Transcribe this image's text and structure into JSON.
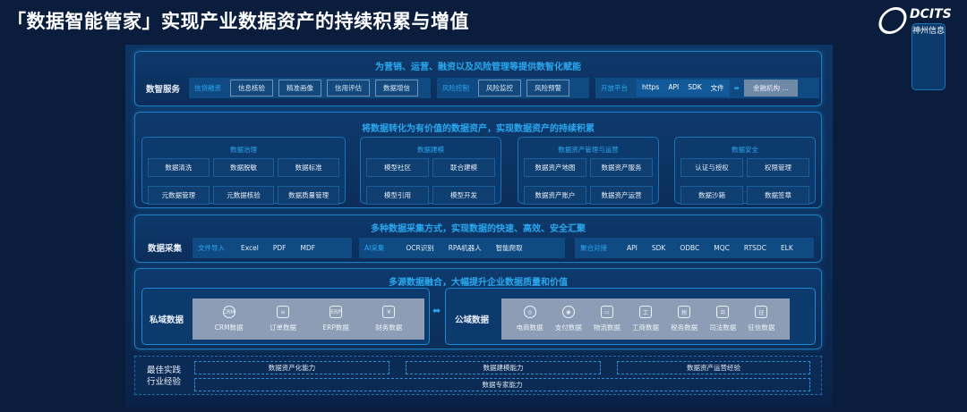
{
  "header": {
    "title": "「数据智能管家」实现产业数据资产的持续积累与增值",
    "logo_brand": "DCITS",
    "logo_sub": "神州信息"
  },
  "services": {
    "title": "为营销、运营、融资以及风险管理等提供数智化赋能",
    "label": "数智服务",
    "groups": [
      {
        "label": "信贷融资",
        "items": [
          "信息核验",
          "精准画像",
          "信用评估",
          "数据增信"
        ]
      },
      {
        "label": "风险控制",
        "items": [
          "风险监控",
          "风险预警"
        ]
      }
    ],
    "open_platform": {
      "label": "开放平台",
      "items": [
        "https",
        "API",
        "SDK",
        "文件"
      ],
      "target": "金融机构 ..."
    }
  },
  "assets": {
    "title": "将数据转化为有价值的数据资产，实现数据资产的持续积累",
    "modules": [
      {
        "title": "数据治理",
        "items": [
          "数据清洗",
          "数据脱敏",
          "数据标准",
          "元数据管理",
          "元数据核验",
          "数据质量管理"
        ]
      },
      {
        "title": "数据建模",
        "items": [
          "模型社区",
          "联合建模",
          "模型引用",
          "模型开发"
        ]
      },
      {
        "title": "数据资产管理与运营",
        "items": [
          "数据资产地图",
          "数据资产服务",
          "数据资产账户",
          "数据资产运营"
        ]
      },
      {
        "title": "数据安全",
        "items": [
          "认证与授权",
          "权限管理",
          "数据沙箱",
          "数据签章"
        ]
      }
    ]
  },
  "collection": {
    "title": "多种数据采集方式，实现数据的快速、高效、安全汇聚",
    "label": "数据采集",
    "groups": [
      {
        "label": "文件导入",
        "items": [
          "Excel",
          "PDF",
          "MDF"
        ]
      },
      {
        "label": "AI采集",
        "items": [
          "OCR识别",
          "RPA机器人",
          "智能爬取"
        ]
      },
      {
        "label": "聚合对接",
        "items": [
          "API",
          "SDK",
          "ODBC",
          "MQC",
          "RTSDC",
          "ELK"
        ]
      }
    ]
  },
  "fusion": {
    "title": "多源数据融合，大幅提升企业数据质量和价值",
    "private": {
      "label": "私域数据",
      "items": [
        {
          "icon": "crm-icon",
          "glyph": "CRM",
          "label": "CRM数据"
        },
        {
          "icon": "order-icon",
          "glyph": "≡",
          "label": "订单数据"
        },
        {
          "icon": "erp-icon",
          "glyph": "ERP",
          "label": "ERP数据"
        },
        {
          "icon": "finance-icon",
          "glyph": "¥",
          "label": "财务数据"
        }
      ]
    },
    "public": {
      "label": "公域数据",
      "items": [
        {
          "icon": "ecommerce-icon",
          "glyph": "◎",
          "label": "电商数据"
        },
        {
          "icon": "payment-icon",
          "glyph": "◉",
          "label": "支付数据"
        },
        {
          "icon": "logistics-icon",
          "glyph": "▭",
          "label": "物流数据"
        },
        {
          "icon": "business-icon",
          "glyph": "工",
          "label": "工商数据"
        },
        {
          "icon": "tax-icon",
          "glyph": "税",
          "label": "税务数据"
        },
        {
          "icon": "judicial-icon",
          "glyph": "⚖",
          "label": "司法数据"
        },
        {
          "icon": "credit-icon",
          "glyph": "征",
          "label": "征信数据"
        }
      ]
    }
  },
  "practice": {
    "label_line1": "最佳实践",
    "label_line2": "行业经验",
    "items": [
      "数据资产化能力",
      "数据建模能力",
      "数据资产运营经验"
    ],
    "bottom": "数据专家能力"
  },
  "colors": {
    "accent": "#2aa8f0",
    "background": "#0a1d3d",
    "border": "#1c7ec0"
  }
}
